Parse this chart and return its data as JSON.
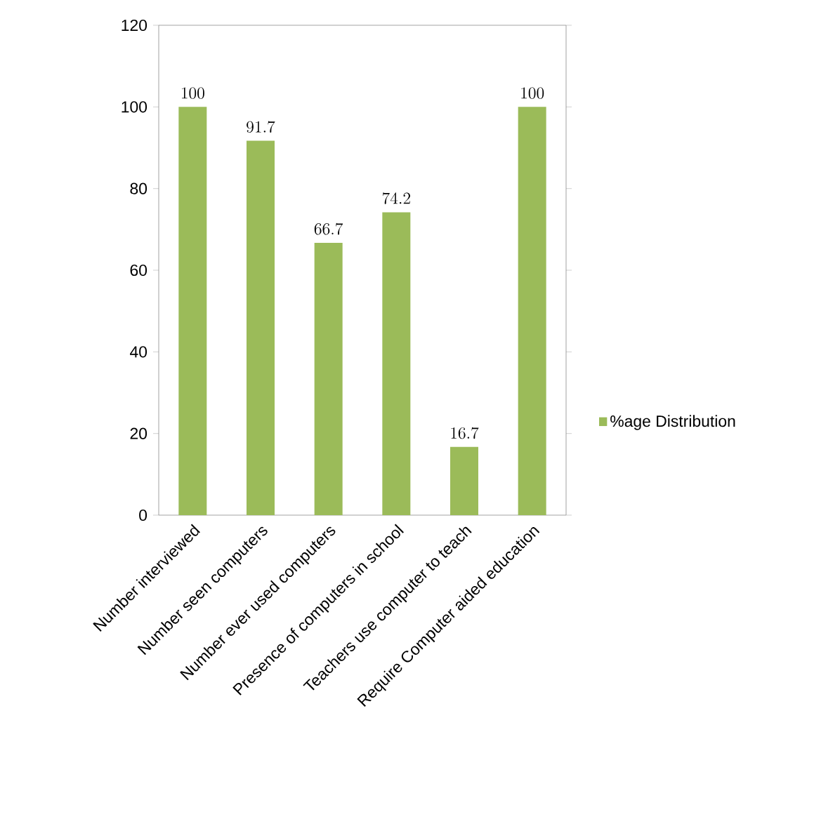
{
  "chart_data": {
    "type": "bar",
    "categories": [
      "Number interviewed",
      "Number seen computers",
      "Number ever used computers",
      "Presence of computers in school",
      "Teachers use computer to teach",
      "Require Computer aided education"
    ],
    "series": [
      {
        "name": "%age Distribution",
        "color": "#9bbb59",
        "values": [
          100,
          91.7,
          66.7,
          74.2,
          16.7,
          100
        ]
      }
    ],
    "ylim": [
      0,
      120
    ],
    "yticks": [
      0,
      20,
      40,
      60,
      80,
      100,
      120
    ],
    "data_labels": true,
    "legend": "right"
  }
}
